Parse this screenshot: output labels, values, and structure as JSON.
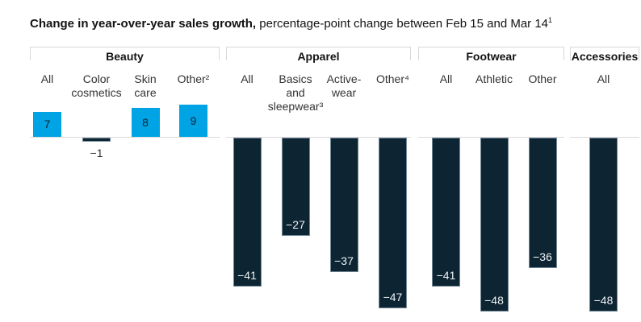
{
  "title": {
    "bold": "Change in year-over-year sales growth,",
    "regular": " percentage-point change between Feb 15 and Mar 14",
    "superscript": "1"
  },
  "colors": {
    "positive_bar": "#00a3e4",
    "negative_bar": "#0d2433",
    "positive_value_text": "#0d2433",
    "negative_value_text": "#edf2f5",
    "axis_line": "#d9d9d9",
    "bracket_line": "#d9d9d9"
  },
  "chart_data": {
    "type": "bar",
    "title": "Change in year-over-year sales growth, percentage-point change between Feb 15 and Mar 14¹",
    "ylabel": "Percentage-point change",
    "axis_baseline": 0,
    "grid": false,
    "legend": "none",
    "groups": [
      {
        "label": "Beauty",
        "columns": [
          {
            "label": "All",
            "value": 7,
            "display": "7"
          },
          {
            "label": "Color\ncosmetics",
            "value": -1,
            "display": "−1"
          },
          {
            "label": "Skin\ncare",
            "value": 8,
            "display": "8"
          },
          {
            "label": "Other²",
            "value": 9,
            "display": "9"
          }
        ]
      },
      {
        "label": "Apparel",
        "columns": [
          {
            "label": "All",
            "value": -41,
            "display": "−41"
          },
          {
            "label": "Basics\nand\nsleepwear³",
            "value": -27,
            "display": "−27"
          },
          {
            "label": "Active-\nwear",
            "value": -37,
            "display": "−37"
          },
          {
            "label": "Other⁴",
            "value": -47,
            "display": "−47"
          }
        ]
      },
      {
        "label": "Footwear",
        "columns": [
          {
            "label": "All",
            "value": -41,
            "display": "−41"
          },
          {
            "label": "Athletic",
            "value": -48,
            "display": "−48"
          },
          {
            "label": "Other",
            "value": -36,
            "display": "−36"
          }
        ]
      },
      {
        "label": "Accessories",
        "columns": [
          {
            "label": "All",
            "value": -48,
            "display": "−48"
          }
        ]
      }
    ]
  }
}
